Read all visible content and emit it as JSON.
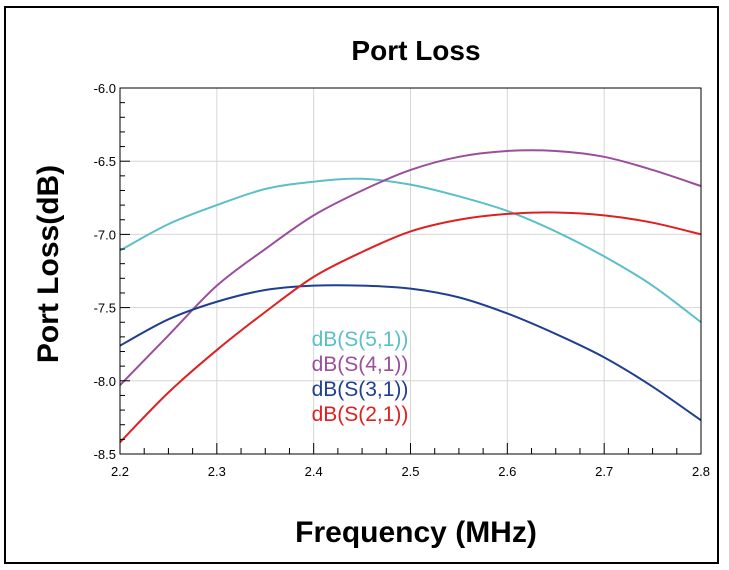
{
  "chart_data": {
    "type": "line",
    "title": "Port Loss",
    "xlabel": "Frequency (MHz)",
    "ylabel": "Port Loss(dB)",
    "xlim": [
      2.2,
      2.8
    ],
    "ylim": [
      -8.5,
      -6.0
    ],
    "x_ticks": [
      "2.2",
      "2.3",
      "2.4",
      "2.5",
      "2.6",
      "2.7",
      "2.8"
    ],
    "y_ticks": [
      "-6.0",
      "-6.5",
      "-7.0",
      "-7.5",
      "-8.0",
      "-8.5"
    ],
    "grid": true,
    "legend_position": "center",
    "x": [
      2.2,
      2.25,
      2.3,
      2.35,
      2.4,
      2.45,
      2.5,
      2.55,
      2.6,
      2.65,
      2.7,
      2.75,
      2.8
    ],
    "series": [
      {
        "name": "dB(S(5,1))",
        "color": "#5bbfc8",
        "values": [
          -7.11,
          -6.93,
          -6.8,
          -6.69,
          -6.64,
          -6.62,
          -6.66,
          -6.74,
          -6.84,
          -6.98,
          -7.15,
          -7.35,
          -7.6
        ]
      },
      {
        "name": "dB(S(4,1))",
        "color": "#9b4e9c",
        "values": [
          -8.03,
          -7.69,
          -7.35,
          -7.1,
          -6.87,
          -6.7,
          -6.56,
          -6.47,
          -6.43,
          -6.43,
          -6.47,
          -6.56,
          -6.67
        ]
      },
      {
        "name": "dB(S(3,1))",
        "color": "#1f3f8f",
        "values": [
          -7.76,
          -7.58,
          -7.46,
          -7.38,
          -7.35,
          -7.35,
          -7.37,
          -7.43,
          -7.54,
          -7.68,
          -7.84,
          -8.04,
          -8.27
        ]
      },
      {
        "name": "dB(S(2,1))",
        "color": "#e02020",
        "values": [
          -8.42,
          -8.08,
          -7.79,
          -7.53,
          -7.29,
          -7.12,
          -6.98,
          -6.9,
          -6.86,
          -6.85,
          -6.87,
          -6.92,
          -7.0
        ]
      }
    ]
  }
}
